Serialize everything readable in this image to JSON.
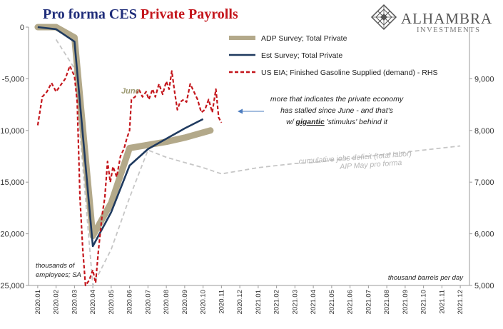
{
  "title": {
    "part1": "Pro forma CES ",
    "part2": "Private Payrolls",
    "color1": "#1f2d7a",
    "color2": "#c4161c"
  },
  "logo": {
    "name": "ALHAMBRA",
    "sub": "INVESTMENTS",
    "icon": "diamond-lattice-icon",
    "color": "#555555"
  },
  "colors": {
    "adp": "#b3a98a",
    "est": "#1f3a5f",
    "gas": "#c4161c",
    "deficit": "#c6c6c6",
    "arrow": "#4a7bbf"
  },
  "chart_data": {
    "type": "line",
    "x_categories": [
      "2020.01",
      "2020.02",
      "2020.03",
      "2020.04",
      "2020.05",
      "2020.06",
      "2020.07",
      "2020.08",
      "2020.09",
      "2020.10",
      "2020.11",
      "2020.12",
      "2021.01",
      "2021.02",
      "2021.03",
      "2021.04",
      "2021.05",
      "2021.06",
      "2021.07",
      "2021.08",
      "2021.09",
      "2021.10",
      "2021.11",
      "2021.12"
    ],
    "y_left": {
      "range": [
        -25000,
        0
      ],
      "ticks": [
        "0",
        "-5,000",
        "-10,000",
        "-15,000",
        "-20,000",
        "-25,000"
      ],
      "label": "thousands of employees; SA"
    },
    "y_right": {
      "range": [
        5000,
        10000
      ],
      "ticks": [
        "9,000",
        "8,000",
        "7,000",
        "6,000",
        "5,000"
      ],
      "label": "thousand barrels per day"
    },
    "series": [
      {
        "name": "ADP Survey; Total Private",
        "axis": "left",
        "points": [
          [
            0,
            0
          ],
          [
            1,
            0
          ],
          [
            2,
            -1000
          ],
          [
            3,
            -20200
          ],
          [
            4,
            -17000
          ],
          [
            5,
            -11700
          ],
          [
            6,
            -11400
          ],
          [
            7,
            -11100
          ],
          [
            8,
            -10700
          ],
          [
            9,
            -10200
          ],
          [
            9.4,
            -10000
          ]
        ]
      },
      {
        "name": "Est Survey; Total Private",
        "axis": "left",
        "points": [
          [
            0,
            0
          ],
          [
            1,
            -200
          ],
          [
            2,
            -1400
          ],
          [
            3,
            -21200
          ],
          [
            4,
            -17900
          ],
          [
            5,
            -13400
          ],
          [
            6,
            -11800
          ],
          [
            7,
            -10800
          ],
          [
            8,
            -9800
          ],
          [
            9,
            -8900
          ]
        ]
      },
      {
        "name": "US EIA; Finished Gasoline Supplied (demand) - RHS",
        "axis": "right",
        "points": [
          [
            0,
            8100
          ],
          [
            0.25,
            8650
          ],
          [
            0.5,
            8750
          ],
          [
            0.75,
            8920
          ],
          [
            1,
            8750
          ],
          [
            1.25,
            8880
          ],
          [
            1.5,
            9000
          ],
          [
            1.75,
            9250
          ],
          [
            2,
            9050
          ],
          [
            2.15,
            8550
          ],
          [
            2.3,
            6700
          ],
          [
            2.45,
            5700
          ],
          [
            2.6,
            5000
          ],
          [
            2.8,
            5100
          ],
          [
            3,
            5300
          ],
          [
            3.15,
            5050
          ],
          [
            3.3,
            5650
          ],
          [
            3.5,
            6350
          ],
          [
            3.65,
            6700
          ],
          [
            3.8,
            7400
          ],
          [
            3.95,
            7000
          ],
          [
            4.1,
            7300
          ],
          [
            4.3,
            7100
          ],
          [
            4.5,
            7500
          ],
          [
            4.7,
            7650
          ],
          [
            4.85,
            7850
          ],
          [
            5,
            8000
          ],
          [
            5.1,
            8600
          ],
          [
            5.3,
            8650
          ],
          [
            5.5,
            8800
          ],
          [
            5.7,
            8650
          ],
          [
            5.9,
            8750
          ],
          [
            6.05,
            8600
          ],
          [
            6.25,
            8800
          ],
          [
            6.4,
            8650
          ],
          [
            6.6,
            8900
          ],
          [
            6.8,
            8700
          ],
          [
            7,
            8950
          ],
          [
            7.15,
            8800
          ],
          [
            7.3,
            9150
          ],
          [
            7.45,
            8750
          ],
          [
            7.6,
            8400
          ],
          [
            7.75,
            8550
          ],
          [
            7.95,
            8600
          ],
          [
            8.1,
            8550
          ],
          [
            8.3,
            8900
          ],
          [
            8.5,
            8750
          ],
          [
            8.7,
            8600
          ],
          [
            8.9,
            8350
          ],
          [
            9.1,
            8400
          ],
          [
            9.3,
            8600
          ],
          [
            9.5,
            8350
          ],
          [
            9.7,
            8800
          ],
          [
            9.85,
            8250
          ],
          [
            10,
            8150
          ]
        ]
      },
      {
        "name": "cumulative jobs deficit (total labor)",
        "axis": "left",
        "points": [
          [
            1,
            -1200
          ],
          [
            2,
            -4000
          ],
          [
            3,
            -25000
          ],
          [
            4,
            -21500
          ],
          [
            5,
            -16500
          ],
          [
            6,
            -11900
          ],
          [
            7,
            -12600
          ],
          [
            8,
            -13100
          ],
          [
            9,
            -13600
          ],
          [
            10,
            -14200
          ],
          [
            11,
            -13900
          ],
          [
            12,
            -13600
          ],
          [
            13,
            -13400
          ],
          [
            14,
            -13200
          ],
          [
            15,
            -13100
          ],
          [
            16,
            -12900
          ],
          [
            17,
            -12700
          ],
          [
            18,
            -12500
          ],
          [
            19,
            -12300
          ],
          [
            20,
            -12100
          ],
          [
            21,
            -11900
          ],
          [
            22,
            -11700
          ],
          [
            23,
            -11500
          ]
        ]
      }
    ]
  },
  "legend": {
    "adp": "ADP Survey; Total Private",
    "est": "Est Survey; Total Private",
    "gas": "US EIA; Finished Gasoline Supplied (demand) - RHS"
  },
  "annotations": {
    "june": "June",
    "comment1": "more that indicates the private economy",
    "comment2": "has stalled since June - and that's",
    "comment3_pre": "w/ ",
    "comment3_bold": "gigantic",
    "comment3_post": " 'stimulus' behind it",
    "deficit1": "cumulative jobs deficit (total labor)",
    "deficit2": "AIP May pro forma",
    "ylabel_left1": "thousands of",
    "ylabel_left2": "employees; SA",
    "ylabel_right": "thousand barrels per day"
  }
}
